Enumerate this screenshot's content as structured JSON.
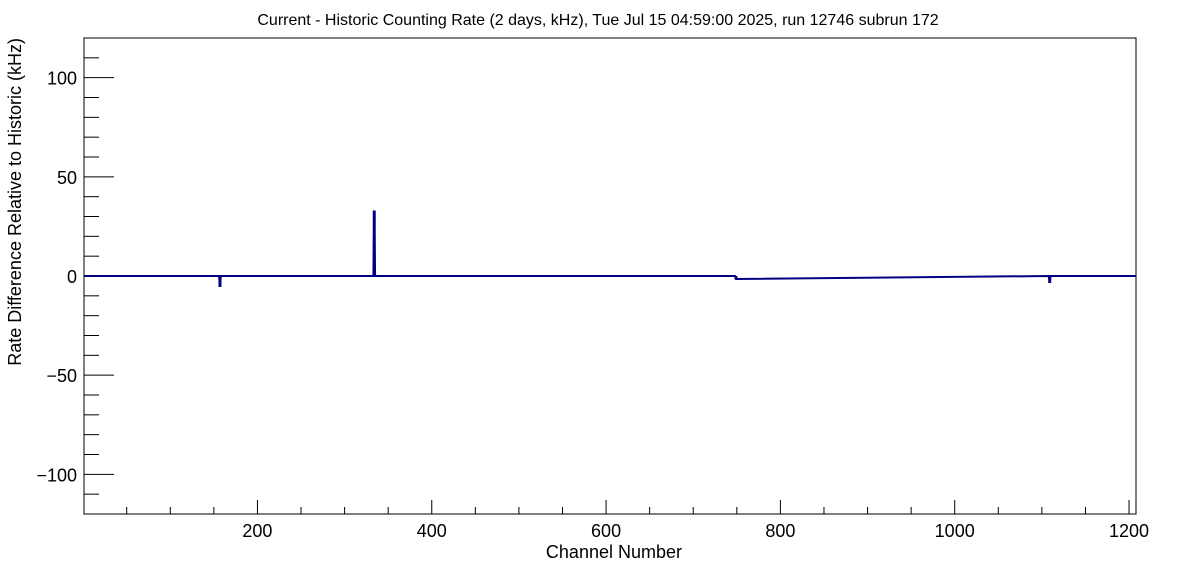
{
  "chart_data": {
    "type": "line",
    "title": "Current - Historic Counting Rate (2 days, kHz), Tue Jul 15 04:59:00 2025, run 12746 subrun 172",
    "xlabel": "Channel Number",
    "ylabel": "Rate Difference Relative to Historic (kHz)",
    "xlim": [
      1,
      1208
    ],
    "ylim": [
      -120,
      120
    ],
    "x_ticks": [
      200,
      400,
      600,
      800,
      1000,
      1200
    ],
    "y_ticks": [
      -100,
      -50,
      0,
      50,
      100
    ],
    "x_tick_labels": [
      "200",
      "400",
      "600",
      "800",
      "1000",
      "1200"
    ],
    "y_tick_labels": [
      "−100",
      "−50",
      "0",
      "50",
      "100"
    ],
    "grid": false,
    "series": [
      {
        "color": "#000080",
        "baseline": 0,
        "x": [
          1,
          156,
          157,
          158,
          333,
          334,
          335,
          748,
          749,
          1108,
          1109,
          1110,
          1208
        ],
        "values": [
          0,
          0,
          -5.5,
          0,
          0,
          33,
          0,
          0,
          -1.5,
          0,
          -3.5,
          0,
          0
        ]
      }
    ],
    "colors": {
      "line": "#000080",
      "axis": "#000000",
      "background": "#ffffff"
    }
  }
}
